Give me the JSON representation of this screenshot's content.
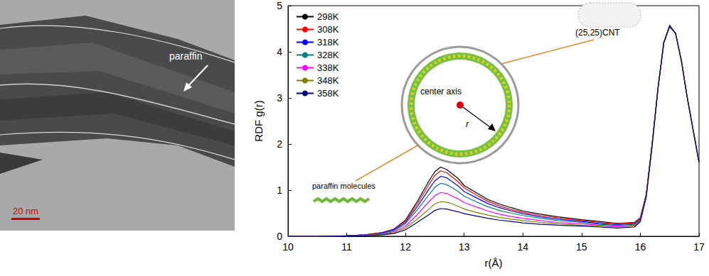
{
  "image_panel": {
    "annotation": "paraffin",
    "scale_bar": "20 nm"
  },
  "chart_data": {
    "type": "line",
    "x_label": "r(Å)",
    "y_label": "RDF g(r)",
    "annotations": [
      "(25,25)CNT",
      "center axis",
      "r",
      "paraffin molecules"
    ],
    "x": [
      10,
      10.5,
      11,
      11.3,
      11.6,
      11.8,
      12,
      12.2,
      12.4,
      12.5,
      12.6,
      12.7,
      12.8,
      12.9,
      13,
      13.2,
      13.4,
      13.6,
      13.8,
      14,
      14.3,
      14.6,
      15,
      15.3,
      15.6,
      15.9,
      16,
      16.1,
      16.2,
      16.3,
      16.4,
      16.5,
      16.6,
      16.7,
      16.8,
      16.9,
      17
    ],
    "series": [
      {
        "name": "298K",
        "color": "#000000",
        "values": [
          0,
          0,
          0.01,
          0.03,
          0.08,
          0.15,
          0.35,
          0.75,
          1.2,
          1.4,
          1.5,
          1.45,
          1.35,
          1.25,
          1.1,
          0.95,
          0.8,
          0.7,
          0.62,
          0.55,
          0.48,
          0.42,
          0.36,
          0.32,
          0.28,
          0.3,
          0.4,
          0.9,
          2.0,
          3.2,
          4.2,
          4.58,
          4.4,
          3.8,
          3.0,
          2.3,
          1.6
        ]
      },
      {
        "name": "308K",
        "color": "#ff0000",
        "values": [
          0,
          0,
          0.01,
          0.03,
          0.08,
          0.15,
          0.33,
          0.7,
          1.12,
          1.32,
          1.42,
          1.38,
          1.28,
          1.18,
          1.05,
          0.9,
          0.76,
          0.66,
          0.58,
          0.52,
          0.45,
          0.4,
          0.34,
          0.3,
          0.27,
          0.29,
          0.4,
          0.9,
          2.0,
          3.2,
          4.2,
          4.56,
          4.4,
          3.8,
          3.0,
          2.3,
          1.6
        ]
      },
      {
        "name": "318K",
        "color": "#0000ff",
        "values": [
          0,
          0,
          0.01,
          0.03,
          0.07,
          0.14,
          0.3,
          0.64,
          1.02,
          1.2,
          1.3,
          1.27,
          1.18,
          1.09,
          0.97,
          0.84,
          0.71,
          0.62,
          0.55,
          0.49,
          0.42,
          0.37,
          0.32,
          0.28,
          0.25,
          0.27,
          0.38,
          0.88,
          1.98,
          3.2,
          4.2,
          4.55,
          4.4,
          3.8,
          3.0,
          2.3,
          1.6
        ]
      },
      {
        "name": "328K",
        "color": "#008080",
        "values": [
          0,
          0,
          0.01,
          0.02,
          0.06,
          0.12,
          0.27,
          0.57,
          0.9,
          1.06,
          1.15,
          1.12,
          1.05,
          0.97,
          0.87,
          0.75,
          0.64,
          0.56,
          0.5,
          0.45,
          0.39,
          0.34,
          0.3,
          0.26,
          0.24,
          0.26,
          0.37,
          0.88,
          1.98,
          3.2,
          4.2,
          4.57,
          4.4,
          3.8,
          3.0,
          2.3,
          1.6
        ]
      },
      {
        "name": "338K",
        "color": "#ff00ff",
        "values": [
          0,
          0,
          0.01,
          0.02,
          0.05,
          0.1,
          0.22,
          0.47,
          0.75,
          0.88,
          0.95,
          0.93,
          0.87,
          0.81,
          0.73,
          0.64,
          0.55,
          0.48,
          0.43,
          0.39,
          0.34,
          0.3,
          0.27,
          0.24,
          0.22,
          0.24,
          0.35,
          0.87,
          1.97,
          3.2,
          4.2,
          4.55,
          4.4,
          3.8,
          3.0,
          2.3,
          1.6
        ]
      },
      {
        "name": "348K",
        "color": "#808000",
        "values": [
          0,
          0,
          0.01,
          0.02,
          0.04,
          0.08,
          0.18,
          0.37,
          0.59,
          0.7,
          0.75,
          0.74,
          0.7,
          0.65,
          0.59,
          0.52,
          0.46,
          0.41,
          0.37,
          0.34,
          0.3,
          0.27,
          0.24,
          0.22,
          0.2,
          0.22,
          0.33,
          0.86,
          1.96,
          3.2,
          4.2,
          4.56,
          4.4,
          3.8,
          3.0,
          2.3,
          1.6
        ]
      },
      {
        "name": "358K",
        "color": "#000080",
        "values": [
          0,
          0,
          0.01,
          0.01,
          0.03,
          0.06,
          0.14,
          0.3,
          0.47,
          0.56,
          0.6,
          0.59,
          0.56,
          0.53,
          0.49,
          0.44,
          0.39,
          0.35,
          0.32,
          0.29,
          0.26,
          0.24,
          0.22,
          0.2,
          0.18,
          0.2,
          0.32,
          0.85,
          1.95,
          3.2,
          4.2,
          4.55,
          4.4,
          3.8,
          3.0,
          2.3,
          1.6
        ]
      }
    ],
    "xlim": [
      10,
      17
    ],
    "xticks": [
      10,
      11,
      12,
      13,
      14,
      15,
      16,
      17
    ],
    "ylim": [
      0,
      5
    ],
    "yticks": [
      0,
      1,
      2,
      3,
      4,
      5
    ],
    "legend": "upper left",
    "grid": false
  }
}
